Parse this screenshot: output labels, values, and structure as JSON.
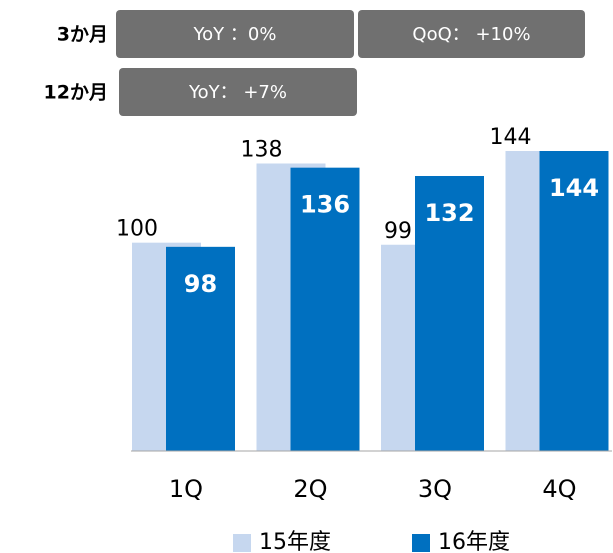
{
  "chart_data": {
    "type": "bar",
    "annotations": [
      {
        "label": "3か月",
        "boxes": [
          "YoY ：0%",
          "QoQ： +10%"
        ]
      },
      {
        "label": "12か月",
        "boxes": [
          "YoY： +7%"
        ]
      }
    ],
    "categories": [
      "1Q",
      "2Q",
      "3Q",
      "4Q"
    ],
    "series": [
      {
        "name": "15年度",
        "color": "#c6d7ef",
        "values": [
          100,
          138,
          99,
          144
        ]
      },
      {
        "name": "16年度",
        "color": "#0070c0",
        "values": [
          98,
          136,
          132,
          144
        ]
      }
    ]
  }
}
